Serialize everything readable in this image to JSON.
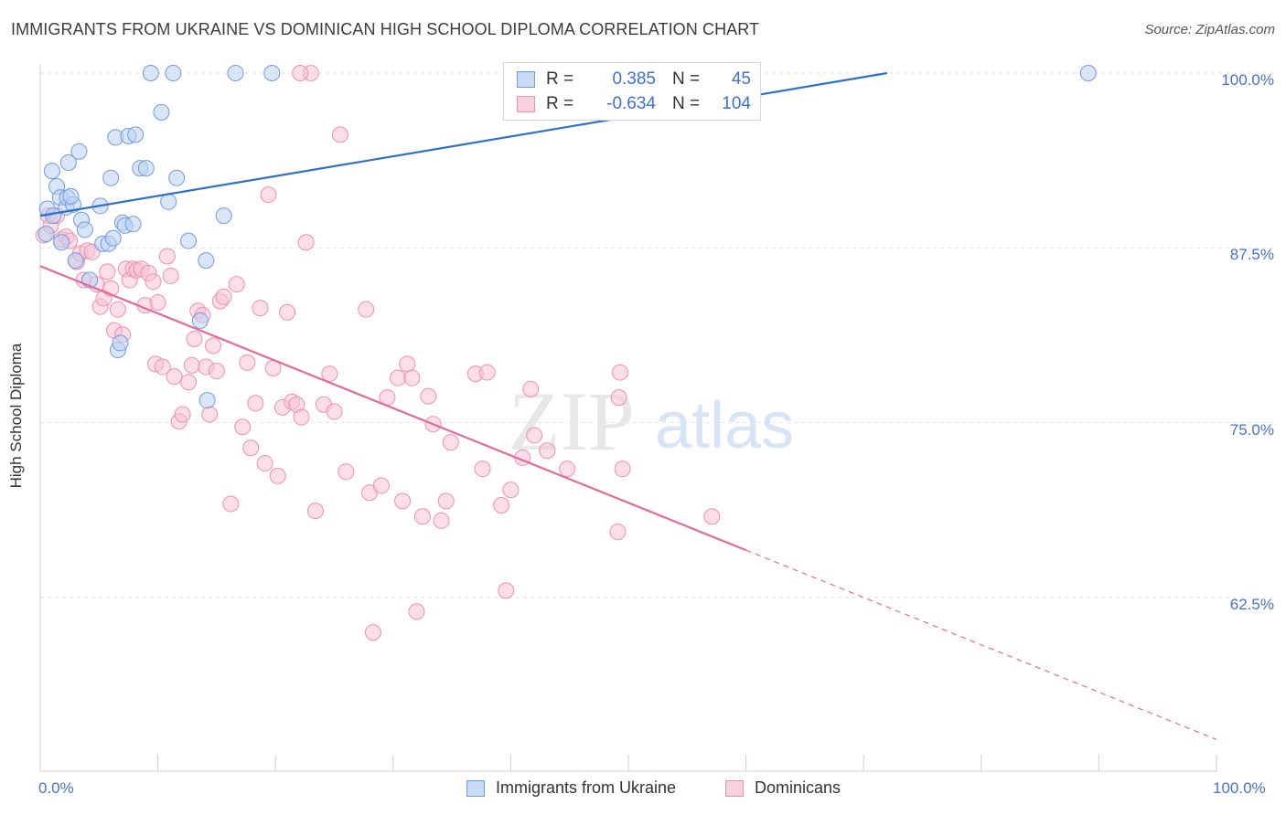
{
  "header": {
    "title": "IMMIGRANTS FROM UKRAINE VS DOMINICAN HIGH SCHOOL DIPLOMA CORRELATION CHART",
    "source": "Source: ZipAtlas.com"
  },
  "watermark": {
    "zip": "ZIP",
    "atlas": "atlas"
  },
  "legend": {
    "rows": [
      {
        "r_label": "R =",
        "r_value": "0.385",
        "n_label": "N =",
        "n_value": "45"
      },
      {
        "r_label": "R =",
        "r_value": "-0.634",
        "n_label": "N =",
        "n_value": "104"
      }
    ]
  },
  "bottom_legend": {
    "series1": "Immigrants from Ukraine",
    "series2": "Dominicans"
  },
  "chart_data": {
    "type": "scatter",
    "title": "IMMIGRANTS FROM UKRAINE VS DOMINICAN HIGH SCHOOL DIPLOMA CORRELATION CHART",
    "xlabel": "",
    "ylabel": "High School Diploma",
    "xlim": [
      0,
      100
    ],
    "ylim": [
      52.5,
      101.5
    ],
    "x_tick_labels": {
      "min": "0.0%",
      "max": "100.0%"
    },
    "y_ticks": [
      62.5,
      75.0,
      87.5,
      100.0
    ],
    "y_tick_labels": [
      "62.5%",
      "75.0%",
      "87.5%",
      "100.0%"
    ],
    "grid": true,
    "legend_position": "top-center",
    "colors": {
      "ukraine": "#6f9be0",
      "dominican": "#ef8fb0",
      "ukraine_line": "#2f6fcc",
      "dominican_line": "#e36a98"
    },
    "series": [
      {
        "name": "Immigrants from Ukraine",
        "color": "#6f9be0",
        "points": [
          [
            0.6,
            90.3
          ],
          [
            0.5,
            88.5
          ],
          [
            1.0,
            93.0
          ],
          [
            1.4,
            91.9
          ],
          [
            1.7,
            91.1
          ],
          [
            2.2,
            90.4
          ],
          [
            2.4,
            93.6
          ],
          [
            2.3,
            91.1
          ],
          [
            2.8,
            90.6
          ],
          [
            3.3,
            94.4
          ],
          [
            3.5,
            89.5
          ],
          [
            3.8,
            88.8
          ],
          [
            3.0,
            86.6
          ],
          [
            4.2,
            85.2
          ],
          [
            5.1,
            90.5
          ],
          [
            5.3,
            87.8
          ],
          [
            5.8,
            87.8
          ],
          [
            6.0,
            92.5
          ],
          [
            6.2,
            88.2
          ],
          [
            6.4,
            95.4
          ],
          [
            6.6,
            80.2
          ],
          [
            6.8,
            80.7
          ],
          [
            7.0,
            89.3
          ],
          [
            7.2,
            89.1
          ],
          [
            7.5,
            95.5
          ],
          [
            7.9,
            89.2
          ],
          [
            8.1,
            95.6
          ],
          [
            8.5,
            93.2
          ],
          [
            9.0,
            93.2
          ],
          [
            9.4,
            100.0
          ],
          [
            10.3,
            97.2
          ],
          [
            10.9,
            90.8
          ],
          [
            11.3,
            100.0
          ],
          [
            11.6,
            92.5
          ],
          [
            13.6,
            82.3
          ],
          [
            14.1,
            86.6
          ],
          [
            14.2,
            76.6
          ],
          [
            15.6,
            89.8
          ],
          [
            16.6,
            100.0
          ],
          [
            19.7,
            100.0
          ],
          [
            89.1,
            100.0
          ],
          [
            1.1,
            89.8
          ],
          [
            1.8,
            87.9
          ],
          [
            2.6,
            91.2
          ],
          [
            12.6,
            88.0
          ]
        ]
      },
      {
        "name": "Dominicans",
        "color": "#ef8fb0",
        "points": [
          [
            0.3,
            88.4
          ],
          [
            0.7,
            89.8
          ],
          [
            0.9,
            89.1
          ],
          [
            1.4,
            89.8
          ],
          [
            1.8,
            88.1
          ],
          [
            2.2,
            88.3
          ],
          [
            2.5,
            88.0
          ],
          [
            3.1,
            86.5
          ],
          [
            3.4,
            87.1
          ],
          [
            3.7,
            85.2
          ],
          [
            4.0,
            87.3
          ],
          [
            4.4,
            87.2
          ],
          [
            4.8,
            84.9
          ],
          [
            5.1,
            83.3
          ],
          [
            5.4,
            83.9
          ],
          [
            5.7,
            85.8
          ],
          [
            6.0,
            84.6
          ],
          [
            6.3,
            81.6
          ],
          [
            6.6,
            83.1
          ],
          [
            7.0,
            81.3
          ],
          [
            7.3,
            86.0
          ],
          [
            7.6,
            85.2
          ],
          [
            7.9,
            86.0
          ],
          [
            8.2,
            85.9
          ],
          [
            8.6,
            86.0
          ],
          [
            8.9,
            83.4
          ],
          [
            9.2,
            85.7
          ],
          [
            9.6,
            85.1
          ],
          [
            9.8,
            79.2
          ],
          [
            10.0,
            83.6
          ],
          [
            10.4,
            79.0
          ],
          [
            10.8,
            86.9
          ],
          [
            11.1,
            85.5
          ],
          [
            11.4,
            78.3
          ],
          [
            11.8,
            75.1
          ],
          [
            12.1,
            75.6
          ],
          [
            12.6,
            77.9
          ],
          [
            12.9,
            79.1
          ],
          [
            13.1,
            81.0
          ],
          [
            13.4,
            83.0
          ],
          [
            13.8,
            82.7
          ],
          [
            14.1,
            79.0
          ],
          [
            14.4,
            75.6
          ],
          [
            14.7,
            80.5
          ],
          [
            15.0,
            78.7
          ],
          [
            15.3,
            83.7
          ],
          [
            15.6,
            84.0
          ],
          [
            16.2,
            69.2
          ],
          [
            16.7,
            84.9
          ],
          [
            17.2,
            74.7
          ],
          [
            17.6,
            79.3
          ],
          [
            17.9,
            73.2
          ],
          [
            18.3,
            76.4
          ],
          [
            18.7,
            83.2
          ],
          [
            19.1,
            72.1
          ],
          [
            19.4,
            91.3
          ],
          [
            19.8,
            78.9
          ],
          [
            20.2,
            71.2
          ],
          [
            20.6,
            76.1
          ],
          [
            21.0,
            82.9
          ],
          [
            21.4,
            76.5
          ],
          [
            21.8,
            76.3
          ],
          [
            22.2,
            75.4
          ],
          [
            22.6,
            87.9
          ],
          [
            23.0,
            100.0
          ],
          [
            23.4,
            68.7
          ],
          [
            24.1,
            76.3
          ],
          [
            24.6,
            78.5
          ],
          [
            25.0,
            75.8
          ],
          [
            25.5,
            95.6
          ],
          [
            26.0,
            71.5
          ],
          [
            27.7,
            83.1
          ],
          [
            28.0,
            70.0
          ],
          [
            28.3,
            60.0
          ],
          [
            29.0,
            70.5
          ],
          [
            29.5,
            76.8
          ],
          [
            30.4,
            78.2
          ],
          [
            30.8,
            69.4
          ],
          [
            31.2,
            79.2
          ],
          [
            31.6,
            78.2
          ],
          [
            32.0,
            61.5
          ],
          [
            32.5,
            68.3
          ],
          [
            33.0,
            76.9
          ],
          [
            33.4,
            74.9
          ],
          [
            34.1,
            68.0
          ],
          [
            34.5,
            69.4
          ],
          [
            34.9,
            73.6
          ],
          [
            37.0,
            78.5
          ],
          [
            37.6,
            71.7
          ],
          [
            38.0,
            78.6
          ],
          [
            39.2,
            69.1
          ],
          [
            39.6,
            63.0
          ],
          [
            40.0,
            70.2
          ],
          [
            41.0,
            72.5
          ],
          [
            41.7,
            77.4
          ],
          [
            42.0,
            74.1
          ],
          [
            43.1,
            73.0
          ],
          [
            44.8,
            71.7
          ],
          [
            49.1,
            67.2
          ],
          [
            49.5,
            71.7
          ],
          [
            49.3,
            78.6
          ],
          [
            49.2,
            76.8
          ],
          [
            57.1,
            68.3
          ],
          [
            22.1,
            100.0
          ]
        ]
      }
    ],
    "trend_lines": [
      {
        "series": "Immigrants from Ukraine",
        "x": [
          0,
          72
        ],
        "y": [
          89.8,
          100.0
        ],
        "style": "solid"
      },
      {
        "series": "Dominicans",
        "x_solid": [
          0,
          60
        ],
        "x_dashed": [
          60,
          100
        ],
        "y_at_0": 86.2,
        "slope": -0.3385,
        "style": "solid-then-dashed"
      }
    ]
  }
}
